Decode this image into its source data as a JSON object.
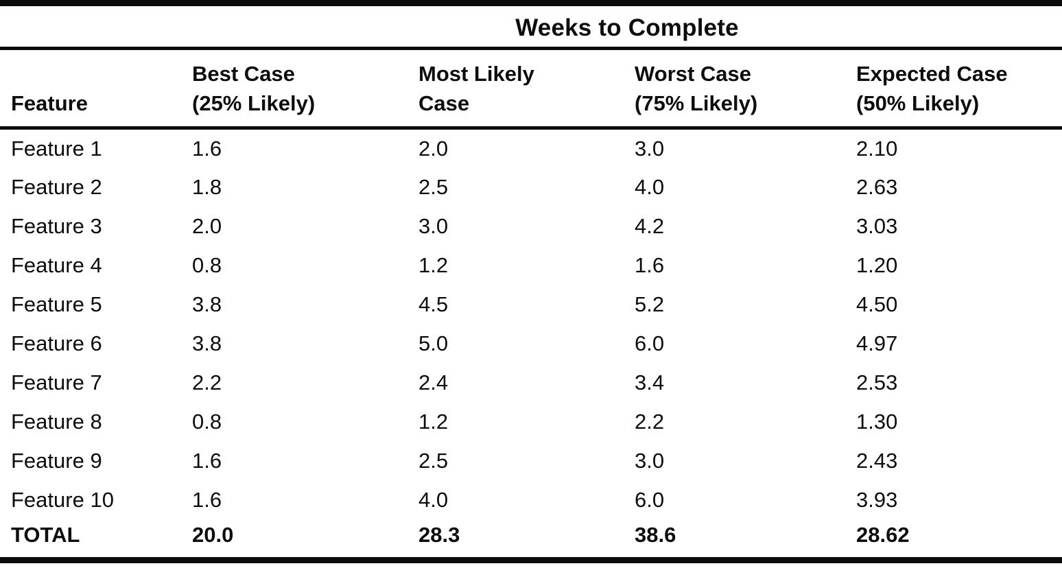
{
  "table": {
    "span_header": "Weeks to Complete",
    "columns": [
      {
        "label": "Feature"
      },
      {
        "label": "Best Case\n(25% Likely)"
      },
      {
        "label": "Most Likely\nCase"
      },
      {
        "label": "Worst Case\n(75% Likely)"
      },
      {
        "label": "Expected Case\n(50% Likely)"
      }
    ],
    "rows": [
      {
        "feature": "Feature 1",
        "best": "1.6",
        "most_likely": "2.0",
        "worst": "3.0",
        "expected": "2.10"
      },
      {
        "feature": "Feature 2",
        "best": "1.8",
        "most_likely": "2.5",
        "worst": "4.0",
        "expected": "2.63"
      },
      {
        "feature": "Feature 3",
        "best": "2.0",
        "most_likely": "3.0",
        "worst": "4.2",
        "expected": "3.03"
      },
      {
        "feature": "Feature 4",
        "best": "0.8",
        "most_likely": "1.2",
        "worst": "1.6",
        "expected": "1.20"
      },
      {
        "feature": "Feature 5",
        "best": "3.8",
        "most_likely": "4.5",
        "worst": "5.2",
        "expected": "4.50"
      },
      {
        "feature": "Feature 6",
        "best": "3.8",
        "most_likely": "5.0",
        "worst": "6.0",
        "expected": "4.97"
      },
      {
        "feature": "Feature 7",
        "best": "2.2",
        "most_likely": "2.4",
        "worst": "3.4",
        "expected": "2.53"
      },
      {
        "feature": "Feature 8",
        "best": "0.8",
        "most_likely": "1.2",
        "worst": "2.2",
        "expected": "1.30"
      },
      {
        "feature": "Feature 9",
        "best": "1.6",
        "most_likely": "2.5",
        "worst": "3.0",
        "expected": "2.43"
      },
      {
        "feature": "Feature 10",
        "best": "1.6",
        "most_likely": "4.0",
        "worst": "6.0",
        "expected": "3.93"
      }
    ],
    "total": {
      "feature": "TOTAL",
      "best": "20.0",
      "most_likely": "28.3",
      "worst": "38.6",
      "expected": "28.62"
    }
  },
  "colors": {
    "text": "#0d0d0d",
    "rule": "#0b0b0b",
    "background": "#ffffff"
  }
}
